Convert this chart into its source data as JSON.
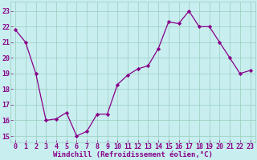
{
  "x": [
    0,
    1,
    2,
    3,
    4,
    5,
    6,
    7,
    8,
    9,
    10,
    11,
    12,
    13,
    14,
    15,
    16,
    17,
    18,
    19,
    20,
    21,
    22,
    23
  ],
  "y": [
    21.8,
    21.0,
    19.0,
    16.0,
    16.1,
    16.5,
    15.0,
    15.3,
    16.4,
    16.4,
    18.3,
    18.9,
    19.3,
    19.5,
    20.6,
    22.3,
    22.2,
    23.0,
    22.0,
    22.0,
    21.0,
    20.0,
    19.0,
    19.2
  ],
  "line_color": "#880088",
  "marker": "D",
  "marker_size": 2.2,
  "bg_color": "#c8eef0",
  "grid_color": "#99ccbb",
  "xlabel": "Windchill (Refroidissement éolien,°C)",
  "ylabel_ticks": [
    15,
    16,
    17,
    18,
    19,
    20,
    21,
    22,
    23
  ],
  "xlim": [
    -0.5,
    23.5
  ],
  "ylim": [
    14.6,
    23.6
  ],
  "xlabel_fontsize": 6.5,
  "tick_fontsize": 6.0,
  "label_color": "#880088"
}
